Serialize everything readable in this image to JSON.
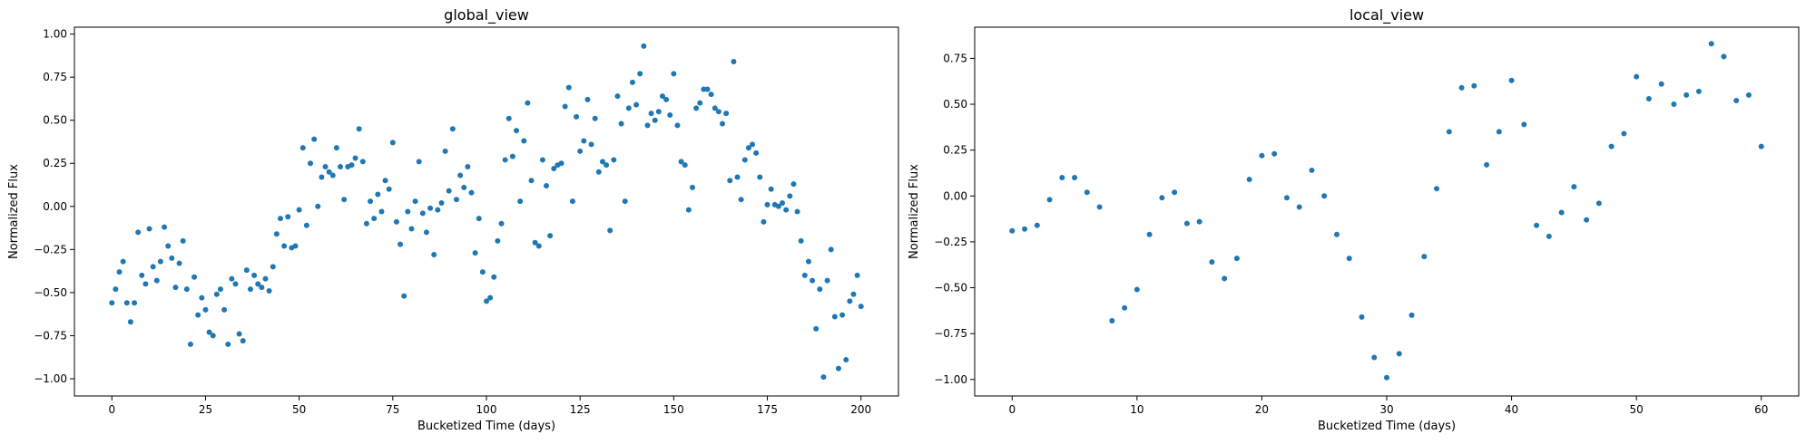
{
  "chart_data": [
    {
      "type": "scatter",
      "title": "global_view",
      "xlabel": "Bucketized Time (days)",
      "ylabel": "Normalized Flux",
      "xlim": [
        -10,
        210
      ],
      "ylim": [
        -1.1,
        1.04
      ],
      "xticks": [
        0,
        25,
        50,
        75,
        100,
        125,
        150,
        175,
        200
      ],
      "xtick_labels": [
        "0",
        "25",
        "50",
        "75",
        "100",
        "125",
        "150",
        "175",
        "200"
      ],
      "yticks": [
        -1.0,
        -0.75,
        -0.5,
        -0.25,
        0.0,
        0.25,
        0.5,
        0.75,
        1.0
      ],
      "ytick_labels": [
        "−1.00",
        "−0.75",
        "−0.50",
        "−0.25",
        "0.00",
        "0.25",
        "0.50",
        "0.75",
        "1.00"
      ],
      "grid": false,
      "color": "#1f77b4",
      "x": [
        0,
        1,
        2,
        3,
        4,
        5,
        6,
        7,
        8,
        9,
        10,
        11,
        12,
        13,
        14,
        15,
        16,
        17,
        18,
        19,
        20,
        21,
        22,
        23,
        24,
        25,
        26,
        27,
        28,
        29,
        30,
        31,
        32,
        33,
        34,
        35,
        36,
        37,
        38,
        39,
        40,
        41,
        42,
        43,
        44,
        45,
        46,
        47,
        48,
        49,
        50,
        51,
        52,
        53,
        54,
        55,
        56,
        57,
        58,
        59,
        60,
        61,
        62,
        63,
        64,
        65,
        66,
        67,
        68,
        69,
        70,
        71,
        72,
        73,
        74,
        75,
        76,
        77,
        78,
        79,
        80,
        81,
        82,
        83,
        84,
        85,
        86,
        87,
        88,
        89,
        90,
        91,
        92,
        93,
        94,
        95,
        96,
        97,
        98,
        99,
        100,
        101,
        102,
        103,
        104,
        105,
        106,
        107,
        108,
        109,
        110,
        111,
        112,
        113,
        114,
        115,
        116,
        117,
        118,
        119,
        120,
        121,
        122,
        123,
        124,
        125,
        126,
        127,
        128,
        129,
        130,
        131,
        132,
        133,
        134,
        135,
        136,
        137,
        138,
        139,
        140,
        141,
        142,
        143,
        144,
        145,
        146,
        147,
        148,
        149,
        150,
        151,
        152,
        153,
        154,
        155,
        156,
        157,
        158,
        159,
        160,
        161,
        162,
        163,
        164,
        165,
        166,
        167,
        168,
        169,
        170,
        171,
        172,
        173,
        174,
        175,
        176,
        177,
        178,
        179,
        180,
        181,
        182,
        183,
        184,
        185,
        186,
        187,
        188,
        189,
        190,
        191,
        192,
        193,
        194,
        195,
        196,
        197,
        198,
        199,
        200
      ],
      "y": [
        -0.56,
        -0.48,
        -0.38,
        -0.32,
        -0.56,
        -0.67,
        -0.56,
        -0.15,
        -0.4,
        -0.45,
        -0.13,
        -0.35,
        -0.43,
        -0.32,
        -0.12,
        -0.23,
        -0.3,
        -0.47,
        -0.33,
        -0.2,
        -0.48,
        -0.8,
        -0.41,
        -0.63,
        -0.53,
        -0.6,
        -0.73,
        -0.75,
        -0.51,
        -0.48,
        -0.6,
        -0.8,
        -0.42,
        -0.45,
        -0.74,
        -0.78,
        -0.37,
        -0.48,
        -0.4,
        -0.45,
        -0.47,
        -0.42,
        -0.49,
        -0.35,
        -0.16,
        -0.07,
        -0.23,
        -0.06,
        -0.24,
        -0.23,
        -0.02,
        0.34,
        -0.11,
        0.25,
        0.39,
        0.0,
        0.17,
        0.23,
        0.2,
        0.18,
        0.34,
        0.23,
        0.04,
        0.23,
        0.24,
        0.28,
        0.45,
        0.26,
        -0.1,
        0.03,
        -0.07,
        0.07,
        -0.03,
        0.15,
        0.1,
        0.37,
        -0.09,
        -0.22,
        -0.52,
        -0.03,
        -0.13,
        0.03,
        0.26,
        -0.04,
        -0.15,
        -0.01,
        -0.28,
        -0.02,
        0.02,
        0.32,
        0.09,
        0.45,
        0.04,
        0.18,
        0.11,
        0.23,
        0.08,
        -0.27,
        -0.07,
        -0.38,
        -0.55,
        -0.53,
        -0.41,
        -0.2,
        -0.1,
        0.27,
        0.51,
        0.29,
        0.44,
        0.03,
        0.38,
        0.6,
        0.15,
        -0.21,
        -0.23,
        0.27,
        0.12,
        -0.17,
        0.22,
        0.24,
        0.25,
        0.58,
        0.69,
        0.03,
        0.52,
        0.32,
        0.38,
        0.62,
        0.36,
        0.51,
        0.2,
        0.26,
        0.24,
        -0.14,
        0.27,
        0.64,
        0.48,
        0.03,
        0.57,
        0.72,
        0.59,
        0.77,
        0.93,
        0.47,
        0.54,
        0.5,
        0.55,
        0.64,
        0.62,
        0.53,
        0.77,
        0.47,
        0.26,
        0.24,
        -0.02,
        0.11,
        0.57,
        0.6,
        0.68,
        0.68,
        0.65,
        0.57,
        0.55,
        0.48,
        0.54,
        0.15,
        0.84,
        0.17,
        0.04,
        0.27,
        0.34,
        0.36,
        0.31,
        0.17,
        -0.09,
        0.01,
        0.1,
        0.01,
        0.0,
        0.02,
        -0.02,
        0.06,
        0.13,
        -0.03,
        -0.2,
        -0.4,
        -0.32,
        -0.43,
        -0.71,
        -0.48,
        -0.99,
        -0.43,
        -0.25,
        -0.64,
        -0.94,
        -0.63,
        -0.89,
        -0.55,
        -0.51,
        -0.4,
        -0.58
      ]
    },
    {
      "type": "scatter",
      "title": "local_view",
      "xlabel": "Bucketized Time (days)",
      "ylabel": "Normalized Flux",
      "xlim": [
        -3.0,
        63.0
      ],
      "ylim": [
        -1.09,
        0.92
      ],
      "xticks": [
        0,
        10,
        20,
        30,
        40,
        50,
        60
      ],
      "xtick_labels": [
        "0",
        "10",
        "20",
        "30",
        "40",
        "50",
        "60"
      ],
      "yticks": [
        -1.0,
        -0.75,
        -0.5,
        -0.25,
        0.0,
        0.25,
        0.5,
        0.75
      ],
      "ytick_labels": [
        "−1.00",
        "−0.75",
        "−0.50",
        "−0.25",
        "0.00",
        "0.25",
        "0.50",
        "0.75"
      ],
      "grid": false,
      "color": "#1f77b4",
      "x": [
        0,
        1,
        2,
        3,
        4,
        5,
        6,
        7,
        8,
        9,
        10,
        11,
        12,
        13,
        14,
        15,
        16,
        17,
        18,
        19,
        20,
        21,
        22,
        23,
        24,
        25,
        26,
        27,
        28,
        29,
        30,
        31,
        32,
        33,
        34,
        35,
        36,
        37,
        38,
        39,
        40,
        41,
        42,
        43,
        44,
        45,
        46,
        47,
        48,
        49,
        50,
        51,
        52,
        53,
        54,
        55,
        56,
        57,
        58,
        59,
        60
      ],
      "y": [
        -0.19,
        -0.18,
        -0.16,
        -0.02,
        0.1,
        0.1,
        0.02,
        -0.06,
        -0.68,
        -0.61,
        -0.51,
        -0.21,
        -0.01,
        0.02,
        -0.15,
        -0.14,
        -0.36,
        -0.45,
        -0.34,
        0.09,
        0.22,
        0.23,
        -0.01,
        -0.06,
        0.14,
        0.0,
        -0.21,
        -0.34,
        -0.66,
        -0.88,
        -0.99,
        -0.86,
        -0.65,
        -0.33,
        0.04,
        0.35,
        0.59,
        0.6,
        0.17,
        0.35,
        0.63,
        0.39,
        -0.16,
        -0.22,
        -0.09,
        0.05,
        -0.13,
        -0.04,
        0.27,
        0.34,
        0.65,
        0.53,
        0.61,
        0.5,
        0.55,
        0.57,
        0.83,
        0.76,
        0.52,
        0.55,
        0.27
      ]
    }
  ]
}
